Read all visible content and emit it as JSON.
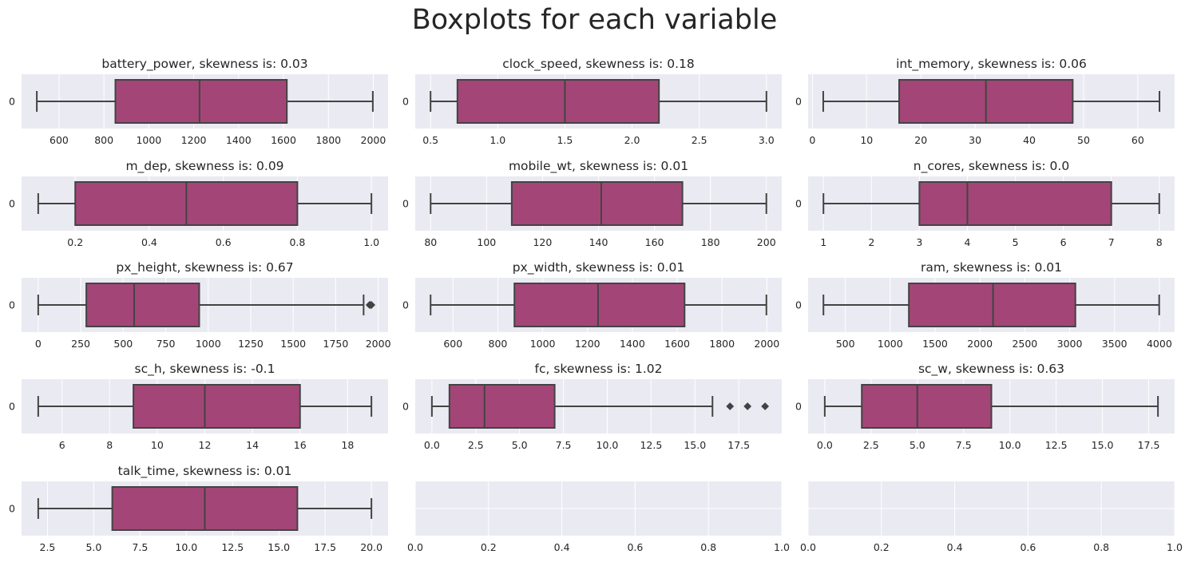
{
  "figure": {
    "title": "Boxplots for each variable",
    "colors": {
      "background": "#ffffff",
      "axes_face": "#eaeaf2",
      "grid": "#ffffff",
      "box_fill": "#a34677",
      "line": "#434343"
    }
  },
  "chart_data": [
    {
      "type": "box",
      "title": "battery_power, skewness is: 0.03",
      "category": "0",
      "stats": {
        "whislo": 501,
        "q1": 851,
        "med": 1226,
        "q3": 1615,
        "whishi": 1998
      },
      "outliers": [],
      "xlim": [
        433,
        2066
      ],
      "xticks": [
        600,
        800,
        1000,
        1200,
        1400,
        1600,
        1800,
        2000
      ],
      "xtick_labels": [
        "600",
        "800",
        "1000",
        "1200",
        "1400",
        "1600",
        "1800",
        "2000"
      ],
      "grid": true
    },
    {
      "type": "box",
      "title": "clock_speed, skewness is: 0.18",
      "category": "0",
      "stats": {
        "whislo": 0.5,
        "q1": 0.7,
        "med": 1.5,
        "q3": 2.2,
        "whishi": 3.0
      },
      "outliers": [],
      "xlim": [
        0.386,
        3.114
      ],
      "xticks": [
        0.5,
        1.0,
        1.5,
        2.0,
        2.5,
        3.0
      ],
      "xtick_labels": [
        "0.5",
        "1.0",
        "1.5",
        "2.0",
        "2.5",
        "3.0"
      ],
      "grid": true
    },
    {
      "type": "box",
      "title": "int_memory, skewness is: 0.06",
      "category": "0",
      "stats": {
        "whislo": 2,
        "q1": 16,
        "med": 32,
        "q3": 48,
        "whishi": 64
      },
      "outliers": [],
      "xlim": [
        -0.79,
        66.79
      ],
      "xticks": [
        0,
        10,
        20,
        30,
        40,
        50,
        60
      ],
      "xtick_labels": [
        "0",
        "10",
        "20",
        "30",
        "40",
        "50",
        "60"
      ],
      "grid": true
    },
    {
      "type": "box",
      "title": "m_dep, skewness is: 0.09",
      "category": "0",
      "stats": {
        "whislo": 0.1,
        "q1": 0.2,
        "med": 0.5,
        "q3": 0.8,
        "whishi": 1.0
      },
      "outliers": [],
      "xlim": [
        0.055,
        1.045
      ],
      "xticks": [
        0.2,
        0.4,
        0.6,
        0.8,
        1.0
      ],
      "xtick_labels": [
        "0.2",
        "0.4",
        "0.6",
        "0.8",
        "1.0"
      ],
      "grid": true
    },
    {
      "type": "box",
      "title": "mobile_wt, skewness is: 0.01",
      "category": "0",
      "stats": {
        "whislo": 80,
        "q1": 109,
        "med": 141,
        "q3": 170,
        "whishi": 200
      },
      "outliers": [],
      "xlim": [
        74.5,
        205.5
      ],
      "xticks": [
        80,
        100,
        120,
        140,
        160,
        180,
        200
      ],
      "xtick_labels": [
        "80",
        "100",
        "120",
        "140",
        "160",
        "180",
        "200"
      ],
      "grid": true
    },
    {
      "type": "box",
      "title": "n_cores, skewness is: 0.0",
      "category": "0",
      "stats": {
        "whislo": 1,
        "q1": 3,
        "med": 4,
        "q3": 7,
        "whishi": 8
      },
      "outliers": [],
      "xlim": [
        0.68,
        8.32
      ],
      "xticks": [
        1,
        2,
        3,
        4,
        5,
        6,
        7,
        8
      ],
      "xtick_labels": [
        "1",
        "2",
        "3",
        "4",
        "5",
        "6",
        "7",
        "8"
      ],
      "grid": true
    },
    {
      "type": "box",
      "title": "px_height, skewness is: 0.67",
      "category": "0",
      "stats": {
        "whislo": 0,
        "q1": 283,
        "med": 564,
        "q3": 947,
        "whishi": 1914
      },
      "outliers": [
        1949,
        1956,
        1960
      ],
      "xlim": [
        -98,
        2058
      ],
      "xticks": [
        0,
        250,
        500,
        750,
        1000,
        1250,
        1500,
        1750,
        2000
      ],
      "xtick_labels": [
        "0",
        "250",
        "500",
        "750",
        "1000",
        "1250",
        "1500",
        "1750",
        "2000"
      ],
      "grid": true
    },
    {
      "type": "box",
      "title": "px_width, skewness is: 0.01",
      "category": "0",
      "stats": {
        "whislo": 500,
        "q1": 874,
        "med": 1247,
        "q3": 1633,
        "whishi": 1998
      },
      "outliers": [],
      "xlim": [
        431.5,
        2066.5
      ],
      "xticks": [
        600,
        800,
        1000,
        1200,
        1400,
        1600,
        1800,
        2000
      ],
      "xtick_labels": [
        "600",
        "800",
        "1000",
        "1200",
        "1400",
        "1600",
        "1800",
        "2000"
      ],
      "grid": true
    },
    {
      "type": "box",
      "title": "ram, skewness is: 0.01",
      "category": "0",
      "stats": {
        "whislo": 256,
        "q1": 1208,
        "med": 2146,
        "q3": 3064,
        "whishi": 3998
      },
      "outliers": [],
      "xlim": [
        85,
        4170
      ],
      "xticks": [
        500,
        1000,
        1500,
        2000,
        2500,
        3000,
        3500,
        4000
      ],
      "xtick_labels": [
        "500",
        "1000",
        "1500",
        "2000",
        "2500",
        "3000",
        "3500",
        "4000"
      ],
      "grid": true
    },
    {
      "type": "box",
      "title": "sc_h, skewness is: -0.1",
      "category": "0",
      "stats": {
        "whislo": 5,
        "q1": 9,
        "med": 12,
        "q3": 16,
        "whishi": 19
      },
      "outliers": [],
      "xlim": [
        4.3,
        19.7
      ],
      "xticks": [
        6,
        8,
        10,
        12,
        14,
        16,
        18
      ],
      "xtick_labels": [
        "6",
        "8",
        "10",
        "12",
        "14",
        "16",
        "18"
      ],
      "grid": true
    },
    {
      "type": "box",
      "title": "fc, skewness is: 1.02",
      "category": "0",
      "stats": {
        "whislo": 0,
        "q1": 1,
        "med": 3,
        "q3": 7,
        "whishi": 16
      },
      "outliers": [
        17,
        18,
        19
      ],
      "xlim": [
        -0.95,
        19.95
      ],
      "xticks": [
        0.0,
        2.5,
        5.0,
        7.5,
        10.0,
        12.5,
        15.0,
        17.5
      ],
      "xtick_labels": [
        "0.0",
        "2.5",
        "5.0",
        "7.5",
        "10.0",
        "12.5",
        "15.0",
        "17.5"
      ],
      "grid": true
    },
    {
      "type": "box",
      "title": "sc_w, skewness is: 0.63",
      "category": "0",
      "stats": {
        "whislo": 0,
        "q1": 2,
        "med": 5,
        "q3": 9,
        "whishi": 18
      },
      "outliers": [],
      "xlim": [
        -0.9,
        18.9
      ],
      "xticks": [
        0.0,
        2.5,
        5.0,
        7.5,
        10.0,
        12.5,
        15.0,
        17.5
      ],
      "xtick_labels": [
        "0.0",
        "2.5",
        "5.0",
        "7.5",
        "10.0",
        "12.5",
        "15.0",
        "17.5"
      ],
      "grid": true
    },
    {
      "type": "box",
      "title": "talk_time, skewness is: 0.01",
      "category": "0",
      "stats": {
        "whislo": 2,
        "q1": 6,
        "med": 11,
        "q3": 16,
        "whishi": 20
      },
      "outliers": [],
      "xlim": [
        1.1,
        20.9
      ],
      "xticks": [
        2.5,
        5.0,
        7.5,
        10.0,
        12.5,
        15.0,
        17.5,
        20.0
      ],
      "xtick_labels": [
        "2.5",
        "5.0",
        "7.5",
        "10.0",
        "12.5",
        "15.0",
        "17.5",
        "20.0"
      ],
      "grid": true
    },
    {
      "type": "empty",
      "title": "",
      "xlim": [
        0,
        1
      ],
      "xticks": [
        0.0,
        0.2,
        0.4,
        0.6,
        0.8,
        1.0
      ],
      "xtick_labels": [
        "0.0",
        "0.2",
        "0.4",
        "0.6",
        "0.8",
        "1.0"
      ],
      "grid": true
    },
    {
      "type": "empty",
      "title": "",
      "xlim": [
        0,
        1
      ],
      "xticks": [
        0.0,
        0.2,
        0.4,
        0.6,
        0.8,
        1.0
      ],
      "xtick_labels": [
        "0.0",
        "0.2",
        "0.4",
        "0.6",
        "0.8",
        "1.0"
      ],
      "grid": true
    }
  ]
}
